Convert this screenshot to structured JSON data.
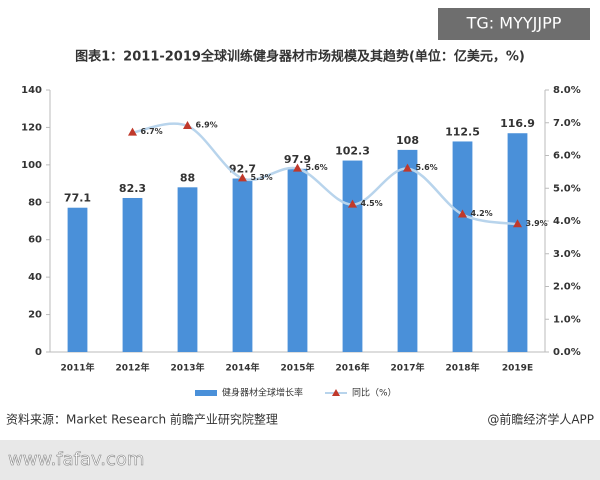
{
  "watermark_top": "TG: MYYJJPP",
  "watermark_bottom": "www.fafav.com",
  "source": "资料来源：Market Research 前瞻产业研究院整理",
  "credit": "@前瞻经济学人APP",
  "chart_data": {
    "type": "bar",
    "title": "图表1：2011-2019全球训练健身器材市场规模及其趋势(单位：亿美元，%)",
    "categories": [
      "2011年",
      "2012年",
      "2013年",
      "2014年",
      "2015年",
      "2016年",
      "2017年",
      "2018年",
      "2019E"
    ],
    "series": [
      {
        "name": "健身器材全球增长率",
        "type": "bar",
        "color": "#4a90d9",
        "values": [
          77.1,
          82.3,
          88,
          92.7,
          97.9,
          102.3,
          108,
          112.5,
          116.9
        ]
      },
      {
        "name": "同比（%）",
        "type": "line",
        "axis": "y2",
        "color": "#b8d4ec",
        "marker_color": "#c0392b",
        "values": [
          null,
          6.7,
          6.9,
          5.3,
          5.6,
          4.5,
          5.6,
          4.2,
          3.9
        ],
        "value_labels": [
          null,
          "6.7%",
          "6.9%",
          "5.3%",
          "5.6%",
          "4.5%",
          "5.6%",
          "4.2%",
          "3.9%"
        ]
      }
    ],
    "ylim": [
      0,
      140
    ],
    "yticks": [
      0,
      20,
      40,
      60,
      80,
      100,
      120,
      140
    ],
    "y2lim": [
      0,
      8
    ],
    "y2ticks": [
      {
        "value": 0,
        "label": "0.0%"
      },
      {
        "value": 1,
        "label": "1.0%"
      },
      {
        "value": 2,
        "label": "2.0%"
      },
      {
        "value": 3,
        "label": "3.0%"
      },
      {
        "value": 4,
        "label": "4.0%"
      },
      {
        "value": 5,
        "label": "5.0%"
      },
      {
        "value": 6,
        "label": "6.0%"
      },
      {
        "value": 7,
        "label": "7.0%"
      },
      {
        "value": 8,
        "label": "8.0%"
      }
    ],
    "grid": false,
    "legend": "bottom"
  }
}
